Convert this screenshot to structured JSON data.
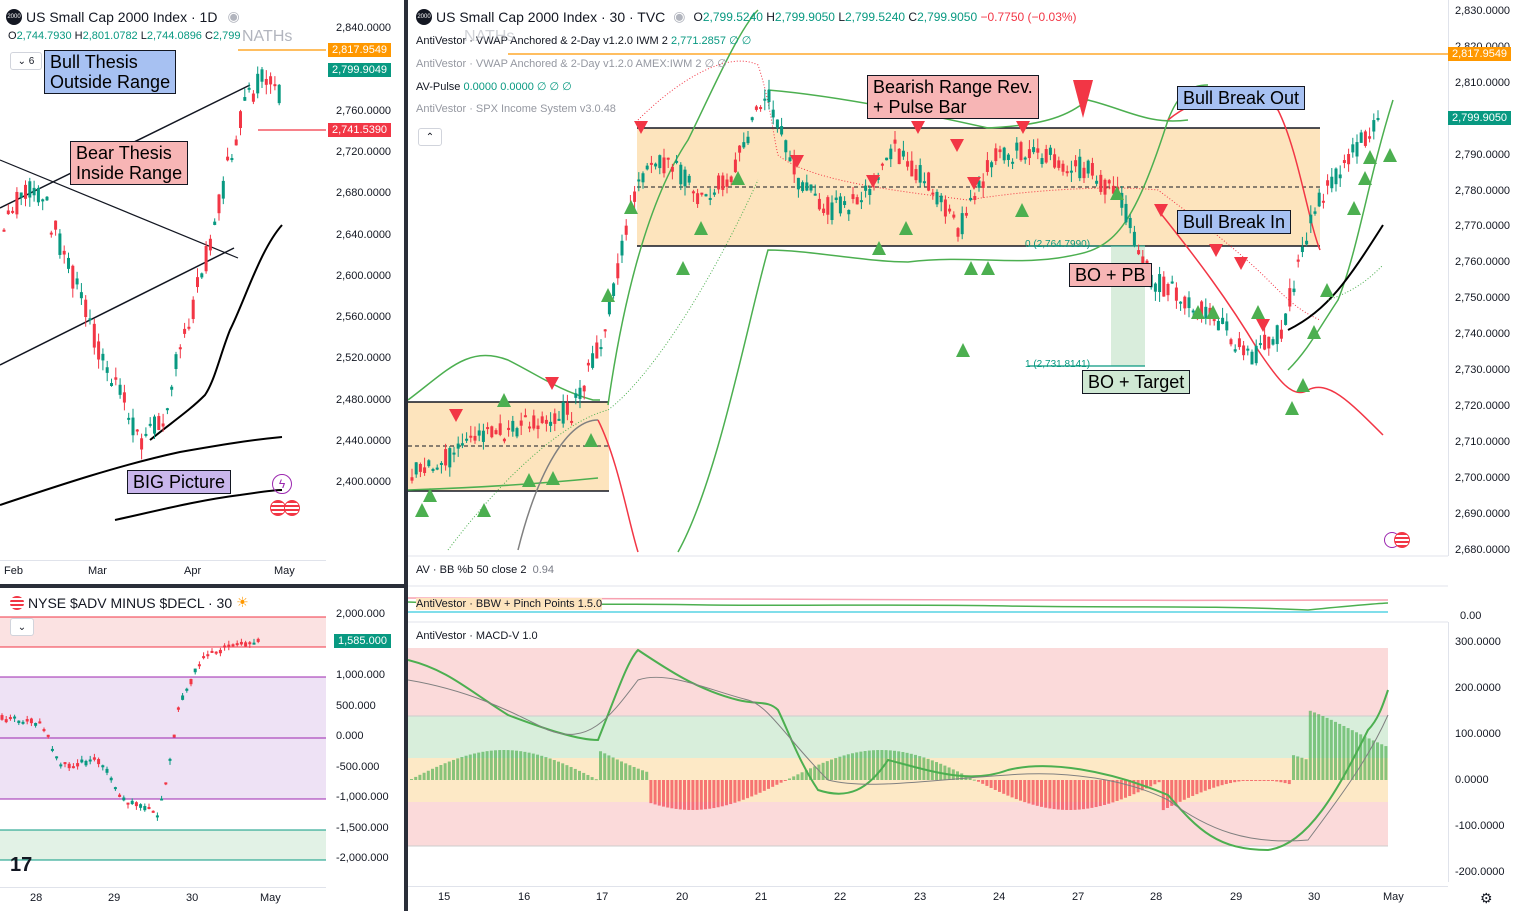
{
  "left_chart": {
    "title": "US Small Cap 2000 Index · 1D",
    "ohlc": {
      "o": "2,744.7930",
      "h": "2,801.0782",
      "l": "2,744.0896",
      "c_partial": "2,799"
    },
    "layers_count": "6",
    "nath_label": "NATHs",
    "price_axis": [
      "2,840.0000",
      "2,800.0000",
      "2,760.0000",
      "2,720.0000",
      "2,680.0000",
      "2,640.0000",
      "2,600.0000",
      "2,560.0000",
      "2,520.0000",
      "2,480.0000",
      "2,440.0000",
      "2,400.0000"
    ],
    "tags": {
      "nath": "2,817.9549",
      "last": "2,799.9049",
      "prev": "2,741.5390"
    },
    "time_axis": [
      "Feb",
      "Mar",
      "Apr",
      "May"
    ],
    "annotations": {
      "bull_thesis_l1": "Bull Thesis",
      "bull_thesis_l2": "Outside Range",
      "bear_thesis_l1": "Bear Thesis",
      "bear_thesis_l2": "Inside Range",
      "big_picture": "BIG Picture"
    }
  },
  "breadth_chart": {
    "title": "NYSE $ADV MINUS $DECL · 30",
    "price_axis": [
      "2,000.000",
      "1,000.000",
      "500.000",
      "0.000",
      "-500.000",
      "-1,000.000",
      "-1,500.000",
      "-2,000.000"
    ],
    "tag": "1,585.000",
    "time_axis": [
      "28",
      "29",
      "30",
      "May"
    ]
  },
  "main_chart": {
    "title": "US Small Cap 2000 Index · 30 · TVC",
    "ohlc": {
      "o": "2,799.5240",
      "h": "2,799.9050",
      "l": "2,799.5240",
      "c": "2,799.9050",
      "chg": "−0.7750 (−0.03%)"
    },
    "indicators": [
      {
        "name": "AntiVestor · VWAP Anchored & 2-Day v1.2.0 IWM 2",
        "value": "2,771.2857  ∅  ∅",
        "faded": false
      },
      {
        "name": "AntiVestor · VWAP Anchored & 2-Day v1.2.0 AMEX:IWM 2",
        "value": "∅  ∅",
        "faded": true
      },
      {
        "name": "AV-Pulse",
        "value": "0.0000  0.0000  ∅  ∅  ∅",
        "faded": false
      },
      {
        "name": "AntiVestor · SPX Income System v3.0.48",
        "value": "",
        "faded": true
      }
    ],
    "nath_label": "NATHs",
    "price_axis": [
      "2,830.0000",
      "2,820.0000",
      "2,810.0000",
      "2,800.0000",
      "2,790.0000",
      "2,780.0000",
      "2,770.0000",
      "2,760.0000",
      "2,750.0000",
      "2,740.0000",
      "2,730.0000",
      "2,720.0000",
      "2,710.0000",
      "2,700.0000",
      "2,690.0000",
      "2,680.0000"
    ],
    "tags": {
      "nath": "2,817.9549",
      "last": "2,799.9050"
    },
    "fib": {
      "level0": "0 (2,764.7990)",
      "level1": "1 (2,731.8141)"
    },
    "annotations": {
      "bearish_l1": "Bearish Range Rev.",
      "bearish_l2": "+ Pulse Bar",
      "bull_break_out": "Bull Break Out",
      "bull_break_in": "Bull Break In",
      "bo_pb": "BO + PB",
      "bo_target": "BO + Target"
    },
    "time_axis": [
      "15",
      "16",
      "17",
      "20",
      "21",
      "22",
      "23",
      "24",
      "27",
      "28",
      "29",
      "30",
      "May"
    ]
  },
  "sub_indicators": {
    "bb": {
      "name": "AV · BB %b 50 close 2",
      "value": "0.94"
    },
    "bbw": {
      "name": "AntiVestor · BBW + Pinch Points 1.5.0",
      "axis": "0.00"
    },
    "macd": {
      "name": "AntiVestor · MACD-V 1.0",
      "axis": [
        "300.0000",
        "200.0000",
        "100.0000",
        "0.0000",
        "-100.0000",
        "-200.0000"
      ]
    }
  },
  "colors": {
    "up": "#089981",
    "down": "#f23645",
    "orange": "#ff9800",
    "range_fill": "#fde4bd",
    "green_tri": "#4caf50"
  }
}
